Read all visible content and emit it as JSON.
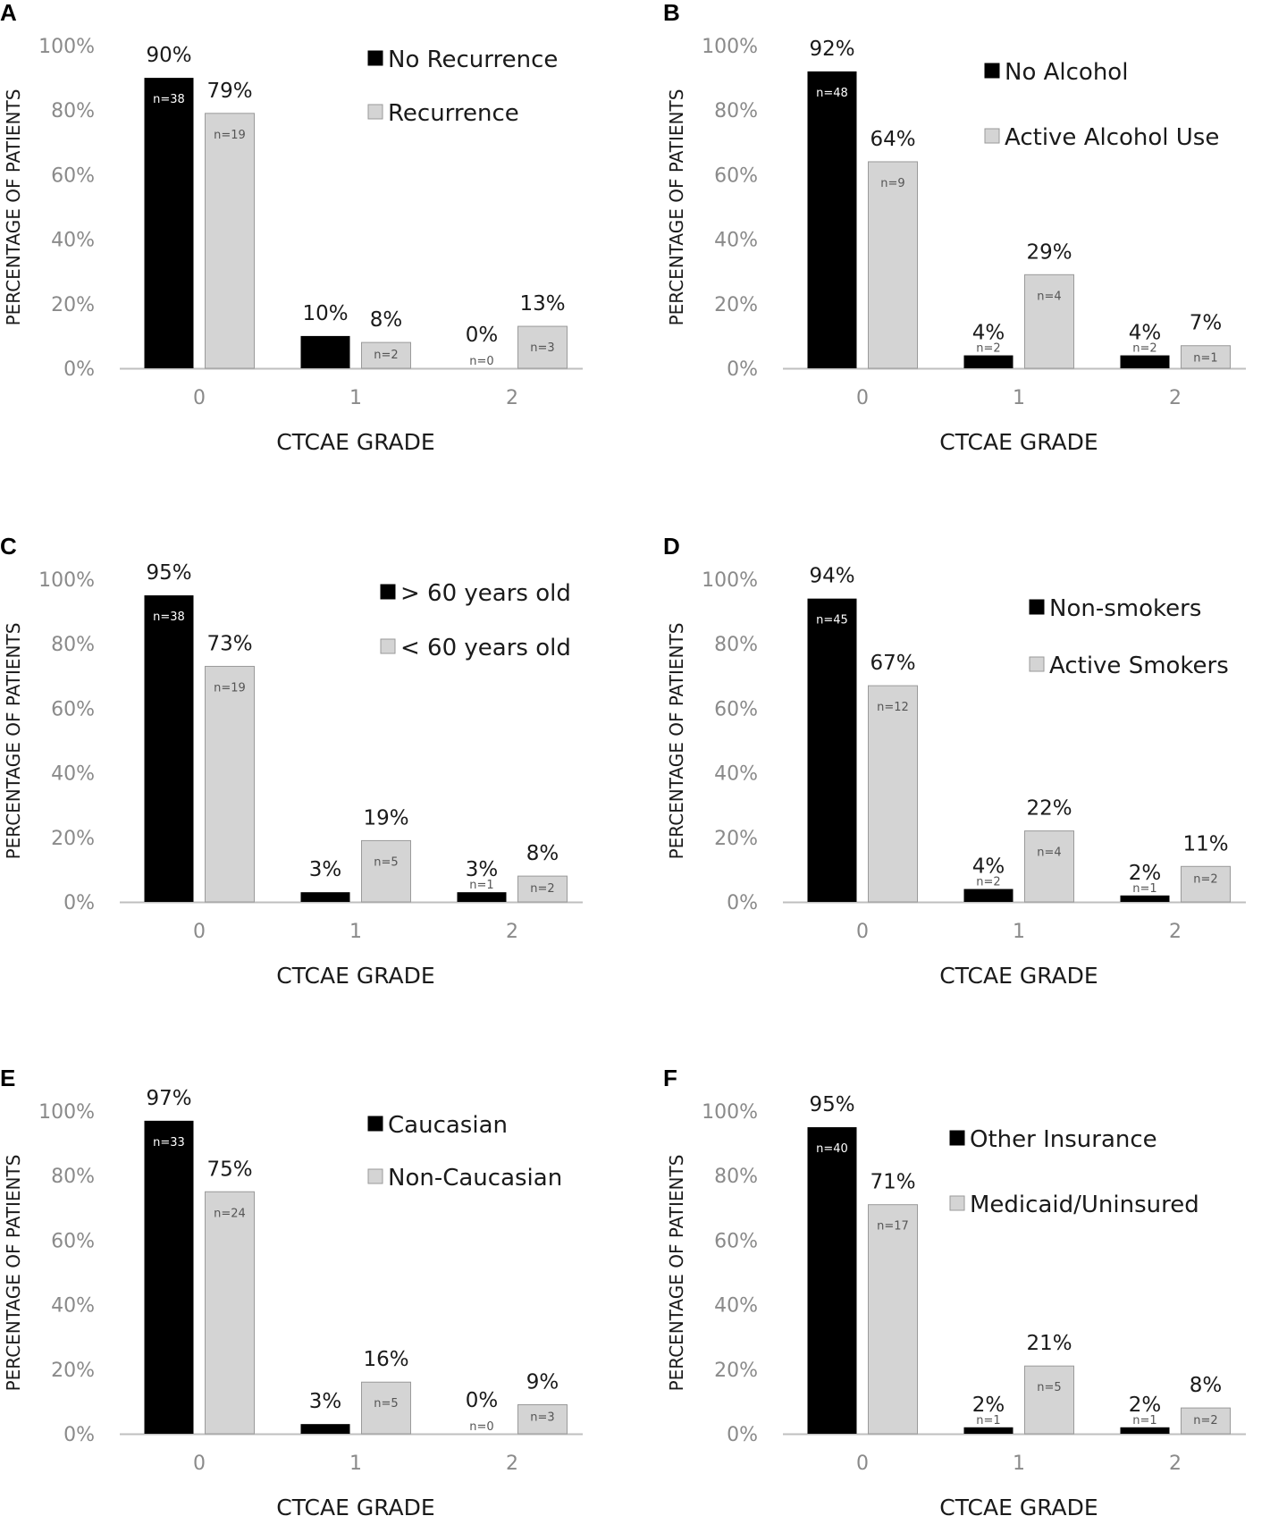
{
  "colors": {
    "series0": "#000000",
    "series1": "#d4d4d4",
    "axis": "#bfbfbf",
    "bar1_stroke": "#9a9a9a"
  },
  "chart_data": [
    {
      "panel": "A",
      "type": "bar",
      "categories": [
        "0",
        "1",
        "2"
      ],
      "ylabel": "PERCENTAGE OF PATIENTS",
      "xlabel": "CTCAE GRADE",
      "yticks": [
        "0%",
        "20%",
        "40%",
        "60%",
        "80%",
        "100%"
      ],
      "ylim": [
        0,
        100
      ],
      "legend_position": "top-right",
      "series": [
        {
          "name": "No Recurrence",
          "values": [
            90,
            10,
            0
          ],
          "labels": [
            "90%",
            "10%",
            "0%"
          ],
          "n": [
            "n=38",
            "",
            "n=0"
          ]
        },
        {
          "name": "Recurrence",
          "values": [
            79,
            8,
            13
          ],
          "labels": [
            "79%",
            "8%",
            "13%"
          ],
          "n": [
            "n=19",
            "n=2",
            "n=3"
          ]
        }
      ]
    },
    {
      "panel": "B",
      "type": "bar",
      "categories": [
        "0",
        "1",
        "2"
      ],
      "ylabel": "PERCENTAGE OF PATIENTS",
      "xlabel": "CTCAE GRADE",
      "yticks": [
        "0%",
        "20%",
        "40%",
        "60%",
        "80%",
        "100%"
      ],
      "ylim": [
        0,
        100
      ],
      "legend_position": "top-right",
      "series": [
        {
          "name": "No Alcohol",
          "values": [
            92,
            4,
            4
          ],
          "labels": [
            "92%",
            "4%",
            "4%"
          ],
          "n": [
            "n=48",
            "n=2",
            "n=2"
          ]
        },
        {
          "name": "Active Alcohol Use",
          "values": [
            64,
            29,
            7
          ],
          "labels": [
            "64%",
            "29%",
            "7%"
          ],
          "n": [
            "n=9",
            "n=4",
            "n=1"
          ]
        }
      ]
    },
    {
      "panel": "C",
      "type": "bar",
      "categories": [
        "0",
        "1",
        "2"
      ],
      "ylabel": "PERCENTAGE OF PATIENTS",
      "xlabel": "CTCAE GRADE",
      "yticks": [
        "0%",
        "20%",
        "40%",
        "60%",
        "80%",
        "100%"
      ],
      "ylim": [
        0,
        100
      ],
      "legend_position": "top-right",
      "series": [
        {
          "name": "> 60 years old",
          "values": [
            95,
            3,
            3
          ],
          "labels": [
            "95%",
            "3%",
            "3%"
          ],
          "n": [
            "n=38",
            "",
            "n=1"
          ]
        },
        {
          "name": "< 60 years old",
          "values": [
            73,
            19,
            8
          ],
          "labels": [
            "73%",
            "19%",
            "8%"
          ],
          "n": [
            "n=19",
            "n=5",
            "n=2"
          ]
        }
      ]
    },
    {
      "panel": "D",
      "type": "bar",
      "categories": [
        "0",
        "1",
        "2"
      ],
      "ylabel": "PERCENTAGE OF PATIENTS",
      "xlabel": "CTCAE GRADE",
      "yticks": [
        "0%",
        "20%",
        "40%",
        "60%",
        "80%",
        "100%"
      ],
      "ylim": [
        0,
        100
      ],
      "legend_position": "top-right",
      "series": [
        {
          "name": "Non-smokers",
          "values": [
            94,
            4,
            2
          ],
          "labels": [
            "94%",
            "4%",
            "2%"
          ],
          "n": [
            "n=45",
            "n=2",
            "n=1"
          ]
        },
        {
          "name": "Active Smokers",
          "values": [
            67,
            22,
            11
          ],
          "labels": [
            "67%",
            "22%",
            "11%"
          ],
          "n": [
            "n=12",
            "n=4",
            "n=2"
          ]
        }
      ]
    },
    {
      "panel": "E",
      "type": "bar",
      "categories": [
        "0",
        "1",
        "2"
      ],
      "ylabel": "PERCENTAGE OF PATIENTS",
      "xlabel": "CTCAE GRADE",
      "yticks": [
        "0%",
        "20%",
        "40%",
        "60%",
        "80%",
        "100%"
      ],
      "ylim": [
        0,
        100
      ],
      "legend_position": "top-right",
      "series": [
        {
          "name": "Caucasian",
          "values": [
            97,
            3,
            0
          ],
          "labels": [
            "97%",
            "3%",
            "0%"
          ],
          "n": [
            "n=33",
            "",
            "n=0"
          ]
        },
        {
          "name": "Non-Caucasian",
          "values": [
            75,
            16,
            9
          ],
          "labels": [
            "75%",
            "16%",
            "9%"
          ],
          "n": [
            "n=24",
            "n=5",
            "n=3"
          ]
        }
      ]
    },
    {
      "panel": "F",
      "type": "bar",
      "categories": [
        "0",
        "1",
        "2"
      ],
      "ylabel": "PERCENTAGE OF PATIENTS",
      "xlabel": "CTCAE GRADE",
      "yticks": [
        "0%",
        "20%",
        "40%",
        "60%",
        "80%",
        "100%"
      ],
      "ylim": [
        0,
        100
      ],
      "legend_position": "top-right",
      "series": [
        {
          "name": "Other Insurance",
          "values": [
            95,
            2,
            2
          ],
          "labels": [
            "95%",
            "2%",
            "2%"
          ],
          "n": [
            "n=40",
            "n=1",
            "n=1"
          ]
        },
        {
          "name": "Medicaid/Uninsured",
          "values": [
            71,
            21,
            8
          ],
          "labels": [
            "71%",
            "21%",
            "8%"
          ],
          "n": [
            "n=17",
            "n=5",
            "n=2"
          ]
        }
      ]
    }
  ]
}
